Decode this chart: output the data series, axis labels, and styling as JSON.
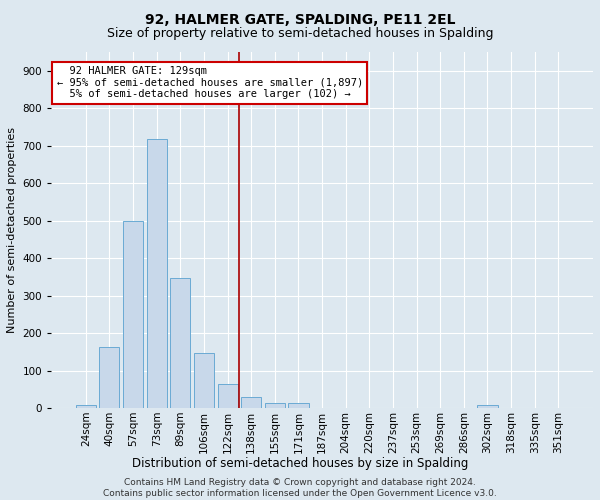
{
  "title": "92, HALMER GATE, SPALDING, PE11 2EL",
  "subtitle": "Size of property relative to semi-detached houses in Spalding",
  "xlabel": "Distribution of semi-detached houses by size in Spalding",
  "ylabel": "Number of semi-detached properties",
  "categories": [
    "24sqm",
    "40sqm",
    "57sqm",
    "73sqm",
    "89sqm",
    "106sqm",
    "122sqm",
    "138sqm",
    "155sqm",
    "171sqm",
    "187sqm",
    "204sqm",
    "220sqm",
    "237sqm",
    "253sqm",
    "269sqm",
    "286sqm",
    "302sqm",
    "318sqm",
    "335sqm",
    "351sqm"
  ],
  "values": [
    8,
    162,
    500,
    718,
    348,
    147,
    65,
    29,
    13,
    13,
    0,
    0,
    0,
    0,
    0,
    0,
    0,
    8,
    0,
    0,
    0
  ],
  "bar_color": "#c8d8ea",
  "bar_edge_color": "#6aaad4",
  "vline_x_index": 6.5,
  "vline_color": "#aa0000",
  "annotation_box_color": "#ffffff",
  "annotation_box_edge": "#cc0000",
  "ylim": [
    0,
    950
  ],
  "yticks": [
    0,
    100,
    200,
    300,
    400,
    500,
    600,
    700,
    800,
    900
  ],
  "background_color": "#dde8f0",
  "footer_text": "Contains HM Land Registry data © Crown copyright and database right 2024.\nContains public sector information licensed under the Open Government Licence v3.0.",
  "title_fontsize": 10,
  "subtitle_fontsize": 9,
  "xlabel_fontsize": 8.5,
  "ylabel_fontsize": 8,
  "tick_fontsize": 7.5,
  "annotation_fontsize": 7.5,
  "footer_fontsize": 6.5
}
